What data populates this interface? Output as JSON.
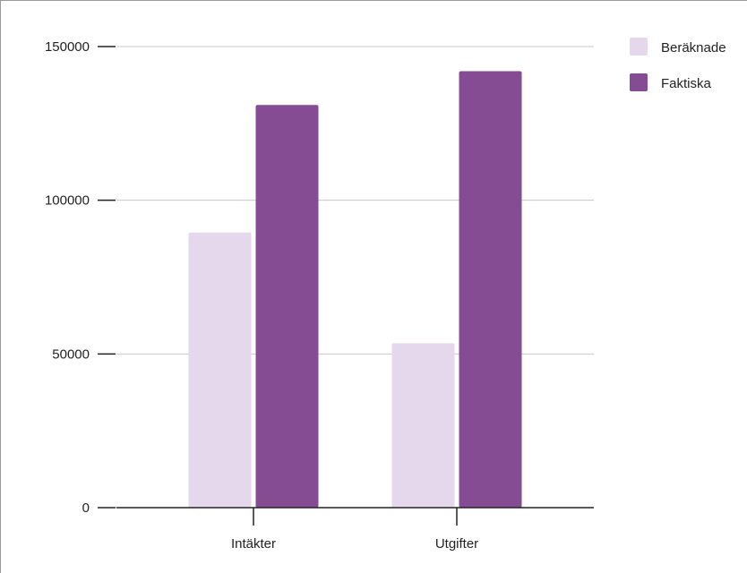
{
  "chart_data": {
    "type": "bar",
    "categories": [
      "Intäkter",
      "Utgifter"
    ],
    "series": [
      {
        "name": "Beräknade",
        "values": [
          89500,
          53500
        ],
        "color": "#e6d8ec"
      },
      {
        "name": "Faktiska",
        "values": [
          131000,
          142000
        ],
        "color": "#854c94"
      }
    ],
    "y_ticks": [
      "0",
      "50000",
      "100000",
      "150000"
    ],
    "ylim": [
      0,
      150000
    ],
    "grid": true,
    "legend": "top-right",
    "title": "",
    "xlabel": "",
    "ylabel": ""
  }
}
